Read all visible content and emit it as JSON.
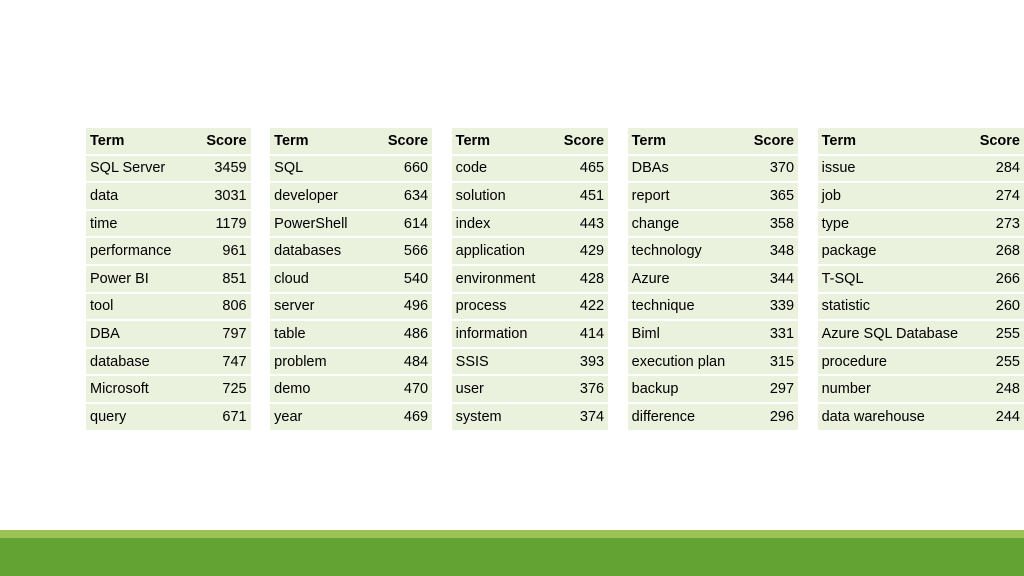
{
  "table": {
    "headers": [
      {
        "term": "Term",
        "score": "Score"
      },
      {
        "term": "Term",
        "score": "Score"
      },
      {
        "term": "Term",
        "score": "Score"
      },
      {
        "term": "Term",
        "score": "Score"
      },
      {
        "term": "Term",
        "score": "Score"
      }
    ],
    "rows": [
      [
        [
          "SQL Server",
          "3459"
        ],
        [
          "SQL",
          "660"
        ],
        [
          "code",
          "465"
        ],
        [
          "DBAs",
          "370"
        ],
        [
          "issue",
          "284"
        ]
      ],
      [
        [
          "data",
          "3031"
        ],
        [
          "developer",
          "634"
        ],
        [
          "solution",
          "451"
        ],
        [
          "report",
          "365"
        ],
        [
          "job",
          "274"
        ]
      ],
      [
        [
          "time",
          "1179"
        ],
        [
          "PowerShell",
          "614"
        ],
        [
          "index",
          "443"
        ],
        [
          "change",
          "358"
        ],
        [
          "type",
          "273"
        ]
      ],
      [
        [
          "performance",
          "961"
        ],
        [
          "databases",
          "566"
        ],
        [
          "application",
          "429"
        ],
        [
          "technology",
          "348"
        ],
        [
          "package",
          "268"
        ]
      ],
      [
        [
          "Power BI",
          "851"
        ],
        [
          "cloud",
          "540"
        ],
        [
          "environment",
          "428"
        ],
        [
          "Azure",
          "344"
        ],
        [
          "T-SQL",
          "266"
        ]
      ],
      [
        [
          "tool",
          "806"
        ],
        [
          "server",
          "496"
        ],
        [
          "process",
          "422"
        ],
        [
          "technique",
          "339"
        ],
        [
          "statistic",
          "260"
        ]
      ],
      [
        [
          "DBA",
          "797"
        ],
        [
          "table",
          "486"
        ],
        [
          "information",
          "414"
        ],
        [
          "Biml",
          "331"
        ],
        [
          "Azure SQL Database",
          "255"
        ]
      ],
      [
        [
          "database",
          "747"
        ],
        [
          "problem",
          "484"
        ],
        [
          "SSIS",
          "393"
        ],
        [
          "execution plan",
          "315"
        ],
        [
          "procedure",
          "255"
        ]
      ],
      [
        [
          "Microsoft",
          "725"
        ],
        [
          "demo",
          "470"
        ],
        [
          "user",
          "376"
        ],
        [
          "backup",
          "297"
        ],
        [
          "number",
          "248"
        ]
      ],
      [
        [
          "query",
          "671"
        ],
        [
          "year",
          "469"
        ],
        [
          "system",
          "374"
        ],
        [
          "difference",
          "296"
        ],
        [
          "data warehouse",
          "244"
        ]
      ]
    ]
  },
  "colors": {
    "cell_background": "#eaf1dd",
    "footer_band_light": "#9bc254",
    "footer_band_dark": "#62a334"
  }
}
